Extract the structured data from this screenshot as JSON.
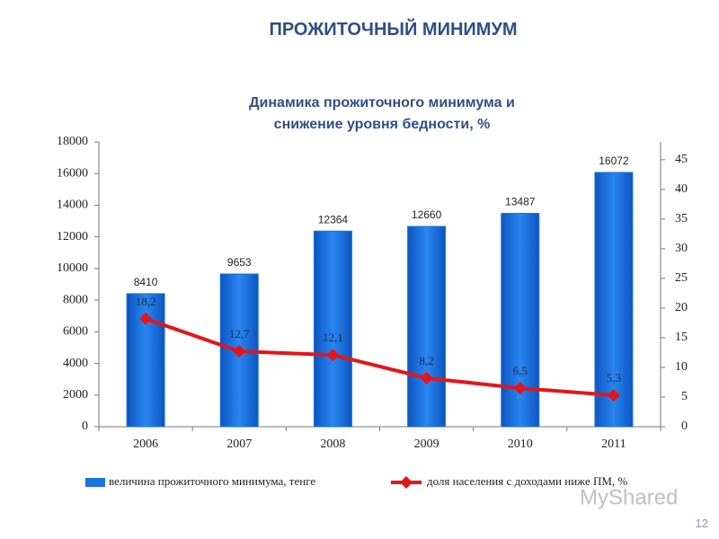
{
  "slide_title": "ПРОЖИТОЧНЫЙ МИНИМУМ",
  "page_number": "12",
  "watermark": "MyShared",
  "chart_data": {
    "type": "bar",
    "title": "Динамика прожиточного минимума и снижение уровня бедности, %",
    "categories": [
      "2006",
      "2007",
      "2008",
      "2009",
      "2010",
      "2011"
    ],
    "series": [
      {
        "name": "величина прожиточного минимума, тенге",
        "type": "bar",
        "color": "#1c72e0",
        "values": [
          8410,
          9653,
          12364,
          12660,
          13487,
          16072
        ]
      },
      {
        "name": "доля населения с доходами ниже ПМ, %",
        "type": "line",
        "axis": "y2",
        "color": "#e3161b",
        "values": [
          18.2,
          12.7,
          12.1,
          8.2,
          6.5,
          5.3
        ],
        "value_labels": [
          "18,2",
          "12,7",
          "12,1",
          "8,2",
          "6,5",
          "5,3"
        ]
      }
    ],
    "ylim": [
      0,
      18000
    ],
    "yticks": [
      0,
      2000,
      4000,
      6000,
      8000,
      10000,
      12000,
      14000,
      16000,
      18000
    ],
    "y2lim": [
      0,
      48
    ],
    "y2ticks": [
      0,
      5,
      10,
      15,
      20,
      25,
      30,
      35,
      40,
      45
    ],
    "grid": false
  }
}
